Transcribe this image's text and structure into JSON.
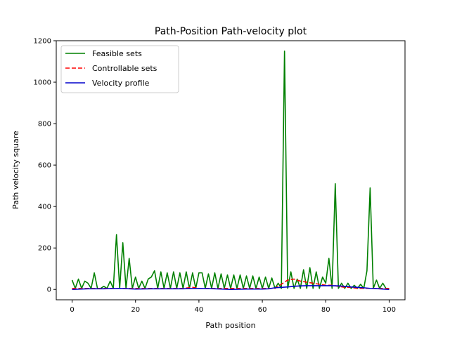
{
  "chart_data": {
    "type": "line",
    "title": "Path-Position Path-velocity plot",
    "xlabel": "Path position",
    "ylabel": "Path velocity square",
    "xlim": [
      -5,
      105
    ],
    "ylim": [
      -50,
      1200
    ],
    "xticks": [
      0,
      20,
      40,
      60,
      80,
      100
    ],
    "yticks": [
      0,
      200,
      400,
      600,
      800,
      1000,
      1200
    ],
    "grid": false,
    "legend_position": "top-left",
    "series": [
      {
        "name": "Feasible sets",
        "color": "#008000",
        "style": "solid",
        "x": [
          0,
          1,
          2,
          3,
          4,
          5,
          6,
          7,
          8,
          9,
          10,
          11,
          12,
          13,
          14,
          15,
          16,
          17,
          18,
          19,
          20,
          21,
          22,
          23,
          24,
          25,
          26,
          27,
          28,
          29,
          30,
          31,
          32,
          33,
          34,
          35,
          36,
          37,
          38,
          39,
          40,
          41,
          42,
          43,
          44,
          45,
          46,
          47,
          48,
          49,
          50,
          51,
          52,
          53,
          54,
          55,
          56,
          57,
          58,
          59,
          60,
          61,
          62,
          63,
          64,
          65,
          66,
          67,
          68,
          69,
          70,
          71,
          72,
          73,
          74,
          75,
          76,
          77,
          78,
          79,
          80,
          81,
          82,
          83,
          84,
          85,
          86,
          87,
          88,
          89,
          90,
          91,
          92,
          93,
          94,
          95,
          96,
          97,
          98,
          99,
          100
        ],
        "values": [
          45,
          5,
          50,
          5,
          40,
          30,
          5,
          80,
          5,
          5,
          15,
          5,
          40,
          5,
          265,
          5,
          225,
          5,
          150,
          5,
          60,
          5,
          40,
          5,
          50,
          60,
          90,
          5,
          85,
          5,
          80,
          5,
          85,
          5,
          80,
          5,
          85,
          5,
          80,
          5,
          80,
          80,
          5,
          75,
          5,
          80,
          5,
          75,
          5,
          70,
          5,
          70,
          5,
          70,
          5,
          65,
          5,
          65,
          5,
          60,
          5,
          60,
          5,
          55,
          5,
          30,
          5,
          1150,
          5,
          85,
          5,
          50,
          5,
          95,
          5,
          105,
          5,
          85,
          5,
          60,
          30,
          150,
          5,
          510,
          5,
          30,
          5,
          30,
          5,
          20,
          5,
          25,
          5,
          90,
          490,
          5,
          45,
          5,
          30,
          5,
          5
        ]
      },
      {
        "name": "Controllable sets",
        "color": "#ff0000",
        "style": "dashed",
        "x": [
          0,
          5,
          10,
          15,
          20,
          25,
          30,
          35,
          38,
          40,
          45,
          50,
          55,
          60,
          62,
          64,
          66,
          68,
          70,
          72,
          74,
          76,
          78,
          80,
          82,
          84,
          86,
          88,
          90,
          92,
          94,
          96,
          98,
          100
        ],
        "values": [
          5,
          5,
          5,
          5,
          5,
          5,
          5,
          5,
          10,
          5,
          5,
          5,
          5,
          5,
          5,
          5,
          25,
          45,
          50,
          40,
          35,
          30,
          25,
          20,
          20,
          15,
          10,
          10,
          5,
          5,
          5,
          5,
          5,
          5
        ]
      },
      {
        "name": "Velocity profile",
        "color": "#0000cc",
        "style": "solid",
        "x": [
          0,
          5,
          10,
          15,
          20,
          25,
          30,
          35,
          40,
          45,
          50,
          55,
          60,
          62,
          64,
          66,
          68,
          70,
          72,
          74,
          76,
          78,
          80,
          82,
          84,
          86,
          88,
          90,
          92,
          94,
          96,
          98,
          100
        ],
        "values": [
          0,
          3,
          3,
          5,
          2,
          3,
          3,
          3,
          5,
          3,
          0,
          2,
          2,
          3,
          8,
          10,
          12,
          15,
          17,
          18,
          18,
          18,
          18,
          18,
          17,
          15,
          12,
          10,
          8,
          5,
          4,
          2,
          0
        ]
      }
    ]
  }
}
